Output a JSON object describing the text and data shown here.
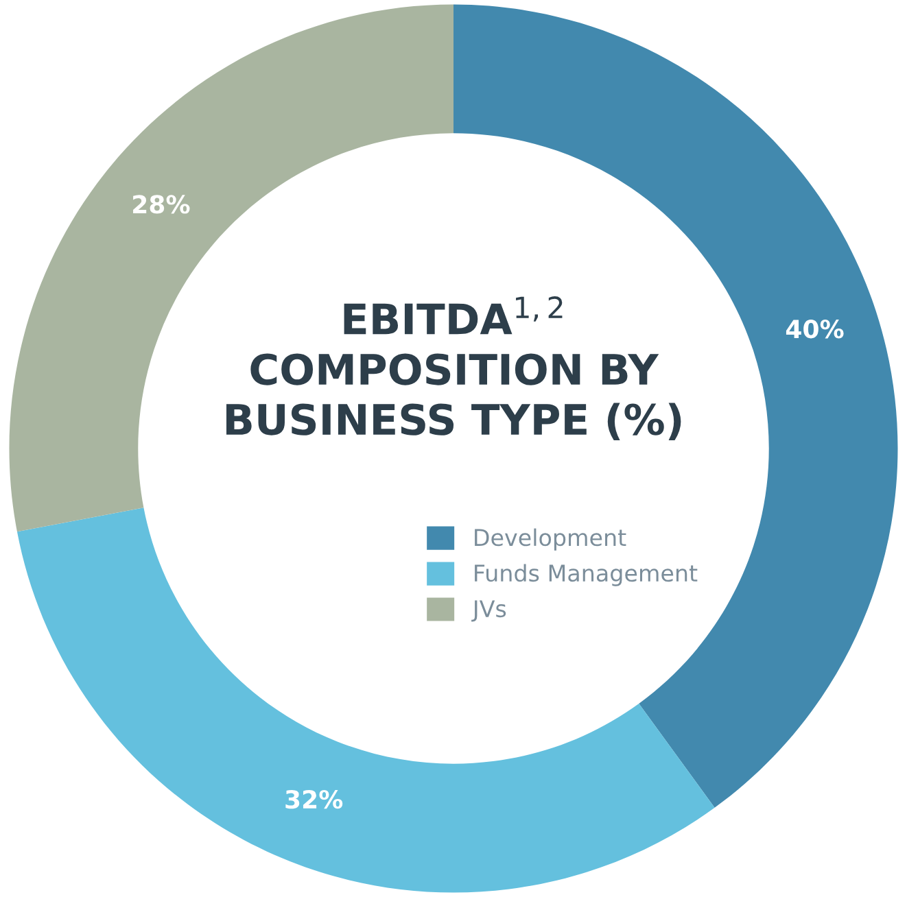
{
  "chart_data": {
    "type": "donut",
    "title": "EBITDA$^{1,2}$\nCOMPOSITION BY\nBUSINESS TYPE (%)",
    "categories": [
      "Development",
      "Funds Management",
      "JVs"
    ],
    "values": [
      40,
      32,
      28
    ],
    "colors": [
      "#4289ae",
      "#64c0de",
      "#a9b5a0"
    ],
    "value_labels": [
      "40%",
      "32%",
      "28%"
    ],
    "legend": "center"
  }
}
